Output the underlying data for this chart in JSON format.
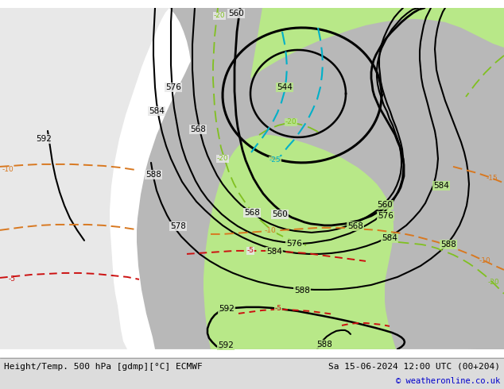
{
  "title_left": "Height/Temp. 500 hPa [gdmp][°C] ECMWF",
  "title_right": "Sa 15-06-2024 12:00 UTC (00+204)",
  "copyright": "© weatheronline.co.uk",
  "ocean_color": "#e8e8e8",
  "land_color": "#b8b8b8",
  "green_color": "#b8e888",
  "fig_width": 6.34,
  "fig_height": 4.9,
  "dpi": 100,
  "bottom_bar_color": "#dcdcdc",
  "font_size_title": 8.0,
  "font_size_copyright": 7.5
}
